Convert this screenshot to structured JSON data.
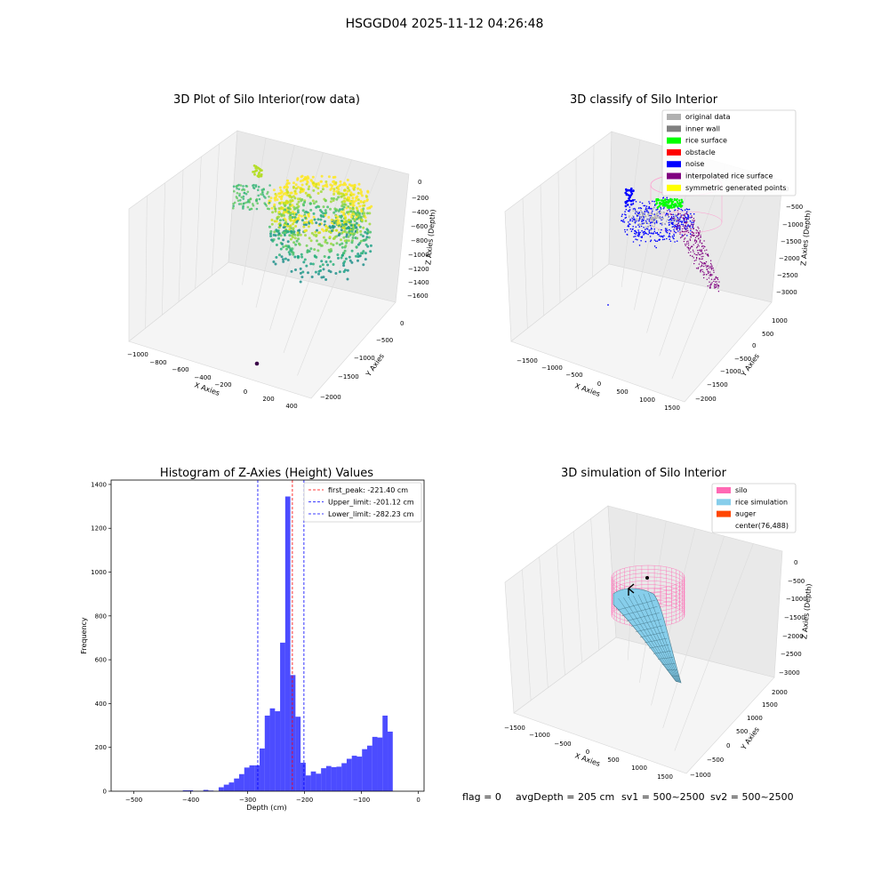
{
  "figure": {
    "suptitle": "HSGGD04 2025-11-12 04:26:48",
    "footer": {
      "flag": "flag = 0",
      "avg_depth": "avgDepth = 205 cm",
      "sv1": "sv1 = 500~2500",
      "sv2": "sv2 = 500~2500"
    }
  },
  "chart_data": [
    {
      "type": "scatter",
      "projection": "3d",
      "title": "3D Plot of Silo Interior(row data)",
      "xlabel": "X Axies",
      "ylabel": "Y Axies",
      "zlabel": "Z Axies (Depth)",
      "x_ticks": [
        "−1000",
        "−800",
        "−600",
        "−400",
        "−200",
        "0",
        "200",
        "400"
      ],
      "y_ticks": [
        "0",
        "−500",
        "−1000",
        "−1500",
        "−2000"
      ],
      "z_ticks": [
        "0",
        "−200",
        "−400",
        "−600",
        "−800",
        "−1000",
        "−1200",
        "−1400",
        "−1600"
      ],
      "xlim": [
        -1000,
        400
      ],
      "ylim": [
        -2000,
        0
      ],
      "zlim": [
        -1600,
        0
      ],
      "colormap": "viridis"
    },
    {
      "type": "scatter",
      "projection": "3d",
      "title": "3D classify of Silo Interior",
      "xlabel": "X Axies",
      "ylabel": "Y Axies",
      "zlabel": "Z Axies (Depth)",
      "x_ticks": [
        "−1500",
        "−1000",
        "−500",
        "0",
        "500",
        "1000",
        "1500"
      ],
      "y_ticks": [
        "1000",
        "500",
        "0",
        "−500",
        "−1000",
        "−1500",
        "−2000"
      ],
      "z_ticks": [
        "0",
        "−500",
        "−1000",
        "−1500",
        "−2000",
        "−2500",
        "−3000"
      ],
      "xlim": [
        -1500,
        1500
      ],
      "ylim": [
        -2000,
        1000
      ],
      "zlim": [
        -3000,
        0
      ],
      "legend": [
        {
          "label": "original data",
          "color": "#b0b0b0"
        },
        {
          "label": "inner wall",
          "color": "#808080"
        },
        {
          "label": "rice surface",
          "color": "#00ff00"
        },
        {
          "label": "obstacle",
          "color": "#ff0000"
        },
        {
          "label": "noise",
          "color": "#0000ff"
        },
        {
          "label": "interpolated rice surface",
          "color": "#800080"
        },
        {
          "label": "symmetric generated points",
          "color": "#ffff00"
        }
      ],
      "legend_loc": "upper right"
    },
    {
      "type": "bar",
      "title": "Histogram of Z-Axies (Height) Values",
      "xlabel": "Depth (cm)",
      "ylabel": "Frequency",
      "xlim": [
        -540,
        10
      ],
      "ylim": [
        0,
        1420
      ],
      "x_ticks": [
        -500,
        -400,
        -300,
        -200,
        -100,
        0
      ],
      "y_ticks": [
        0,
        200,
        400,
        600,
        800,
        1000,
        1200,
        1400
      ],
      "bin_width": 9,
      "bin_starts": [
        -414,
        -405,
        -378,
        -369,
        -351,
        -342,
        -333,
        -324,
        -315,
        -306,
        -297,
        -288,
        -279,
        -270,
        -261,
        -252,
        -243,
        -234,
        -225,
        -216,
        -207,
        -198,
        -189,
        -180,
        -171,
        -162,
        -153,
        -144,
        -135,
        -126,
        -117,
        -108,
        -99,
        -90,
        -81,
        -72,
        -63,
        -54,
        -45,
        -36,
        -27,
        -18
      ],
      "values": [
        4,
        4,
        6,
        3,
        18,
        30,
        40,
        58,
        78,
        108,
        118,
        118,
        195,
        345,
        378,
        365,
        678,
        1345,
        530,
        340,
        130,
        72,
        90,
        80,
        105,
        115,
        110,
        112,
        128,
        148,
        162,
        158,
        192,
        208,
        248,
        245,
        345,
        272,
        0,
        0,
        0,
        0
      ],
      "bar_color": "#0000ff",
      "vlines": [
        {
          "label": "first_peak: -221.40 cm",
          "x": -221.4,
          "color": "#ff0000"
        },
        {
          "label": "Upper_limit: -201.12 cm",
          "x": -201.12,
          "color": "#0000ff"
        },
        {
          "label": "Lower_limit: -282.23 cm",
          "x": -282.23,
          "color": "#0000ff"
        }
      ],
      "legend_loc": "upper right"
    },
    {
      "type": "surface",
      "projection": "3d",
      "title": "3D simulation of Silo Interior",
      "xlabel": "X Axies",
      "ylabel": "Y Axies",
      "zlabel": "Z Axies (Depth)",
      "x_ticks": [
        "−1500",
        "−1000",
        "−500",
        "0",
        "500",
        "1000",
        "1500"
      ],
      "y_ticks": [
        "2000",
        "1500",
        "1000",
        "500",
        "0",
        "−500",
        "−1000"
      ],
      "z_ticks": [
        "0",
        "−500",
        "−1000",
        "−1500",
        "−2000",
        "−2500",
        "−3000"
      ],
      "xlim": [
        -1500,
        1500
      ],
      "ylim": [
        -1000,
        2000
      ],
      "zlim": [
        -3000,
        0
      ],
      "legend": [
        {
          "label": "silo",
          "color": "#ff69b4"
        },
        {
          "label": "rice simulation",
          "color": "#87ceeb"
        },
        {
          "label": "auger",
          "color": "#ff4500"
        },
        {
          "label": "center(76,488)",
          "color": "none"
        }
      ],
      "legend_loc": "upper right"
    }
  ]
}
